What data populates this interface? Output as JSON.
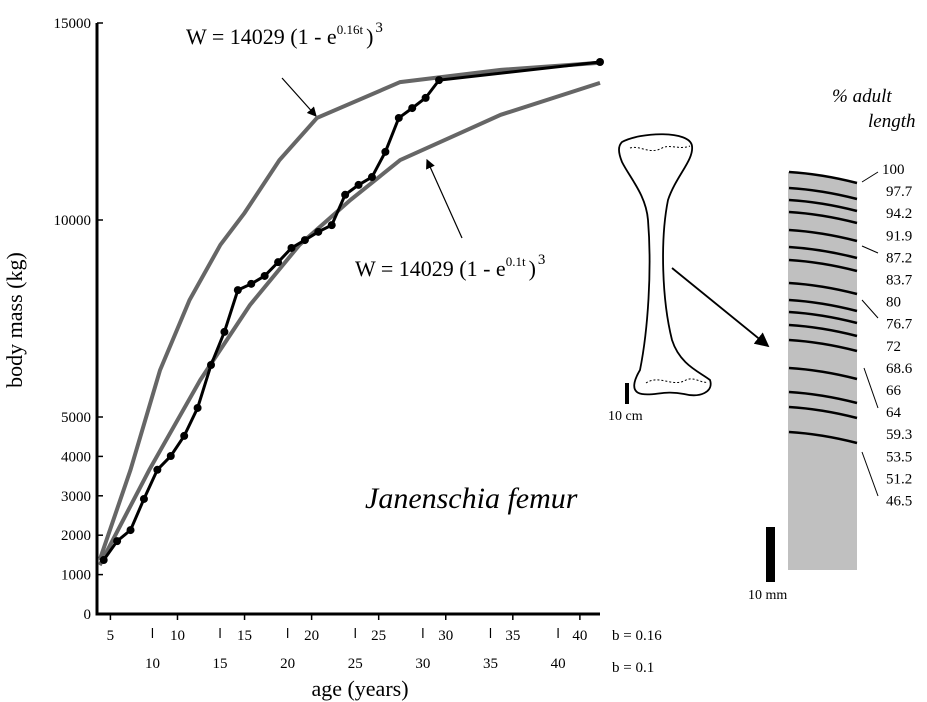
{
  "chart_data": {
    "type": "line",
    "y_label": "body mass (kg)",
    "x_label": "age (years)",
    "ylim": [
      0,
      15000
    ],
    "yticks": [
      0,
      1000,
      2000,
      3000,
      4000,
      5000,
      10000,
      15000
    ],
    "xlim": [
      4,
      41.5
    ],
    "xticks": [
      5,
      10,
      15,
      20,
      25,
      30,
      35,
      40
    ],
    "xaxis_label": "b = 0.16",
    "x2lim": [
      5.9,
      43.1
    ],
    "x2ticks": [
      10,
      15,
      20,
      25,
      30,
      35,
      40
    ],
    "x2axis_label": "b = 0.1",
    "series": [
      {
        "color": "#666666",
        "x": [
          4.2,
          6.5,
          8.7,
          10.9,
          13.2,
          15.0,
          17.6,
          20.4,
          26.6,
          34.1,
          41.5
        ],
        "values": [
          1370,
          3660,
          6190,
          7970,
          9370,
          10180,
          11520,
          12590,
          13500,
          13810,
          13990
        ]
      },
      {
        "color": "#666666",
        "x": [
          4.2,
          7.9,
          11.7,
          15.4,
          19.1,
          22.9,
          26.6,
          34.1,
          41.5
        ],
        "values": [
          1240,
          3660,
          5940,
          7840,
          9370,
          10510,
          11520,
          12670,
          13480
        ]
      },
      {
        "color": "#000000",
        "markers": true,
        "x": [
          4.5,
          5.5,
          6.5,
          7.5,
          8.5,
          9.5,
          10.5,
          11.5,
          12.5,
          13.5,
          14.5,
          15.5,
          16.5,
          17.5,
          18.5,
          19.5,
          20.5,
          21.5,
          22.5,
          23.5,
          24.5,
          25.5,
          26.5,
          27.5,
          28.5,
          29.5,
          41.5
        ],
        "values": [
          1370,
          1850,
          2130,
          2920,
          3660,
          4010,
          4520,
          5230,
          6320,
          7160,
          8220,
          8380,
          8580,
          8930,
          9290,
          9490,
          9700,
          9870,
          10640,
          10890,
          11090,
          11730,
          12590,
          12840,
          13100,
          13550,
          14010
        ]
      }
    ],
    "annotations": [
      {
        "text": "W = 14029 (1 - e",
        "exponent": "0.16t",
        "close": ")",
        "power": 3
      },
      {
        "text": "W = 14029 (1 - e",
        "exponent": "0.1t",
        "close": ")",
        "power": 3
      }
    ],
    "specimen": "Janenschia femur"
  },
  "diagram": {
    "heading": [
      "% adult",
      "length"
    ],
    "growth_marks": [
      100,
      97.7,
      94.2,
      91.9,
      87.2,
      83.7,
      80,
      76.7,
      72,
      68.6,
      66,
      64,
      59.3,
      53.5,
      51.2,
      46.5
    ],
    "femur_scale": "10 cm",
    "section_scale": "10 mm"
  }
}
